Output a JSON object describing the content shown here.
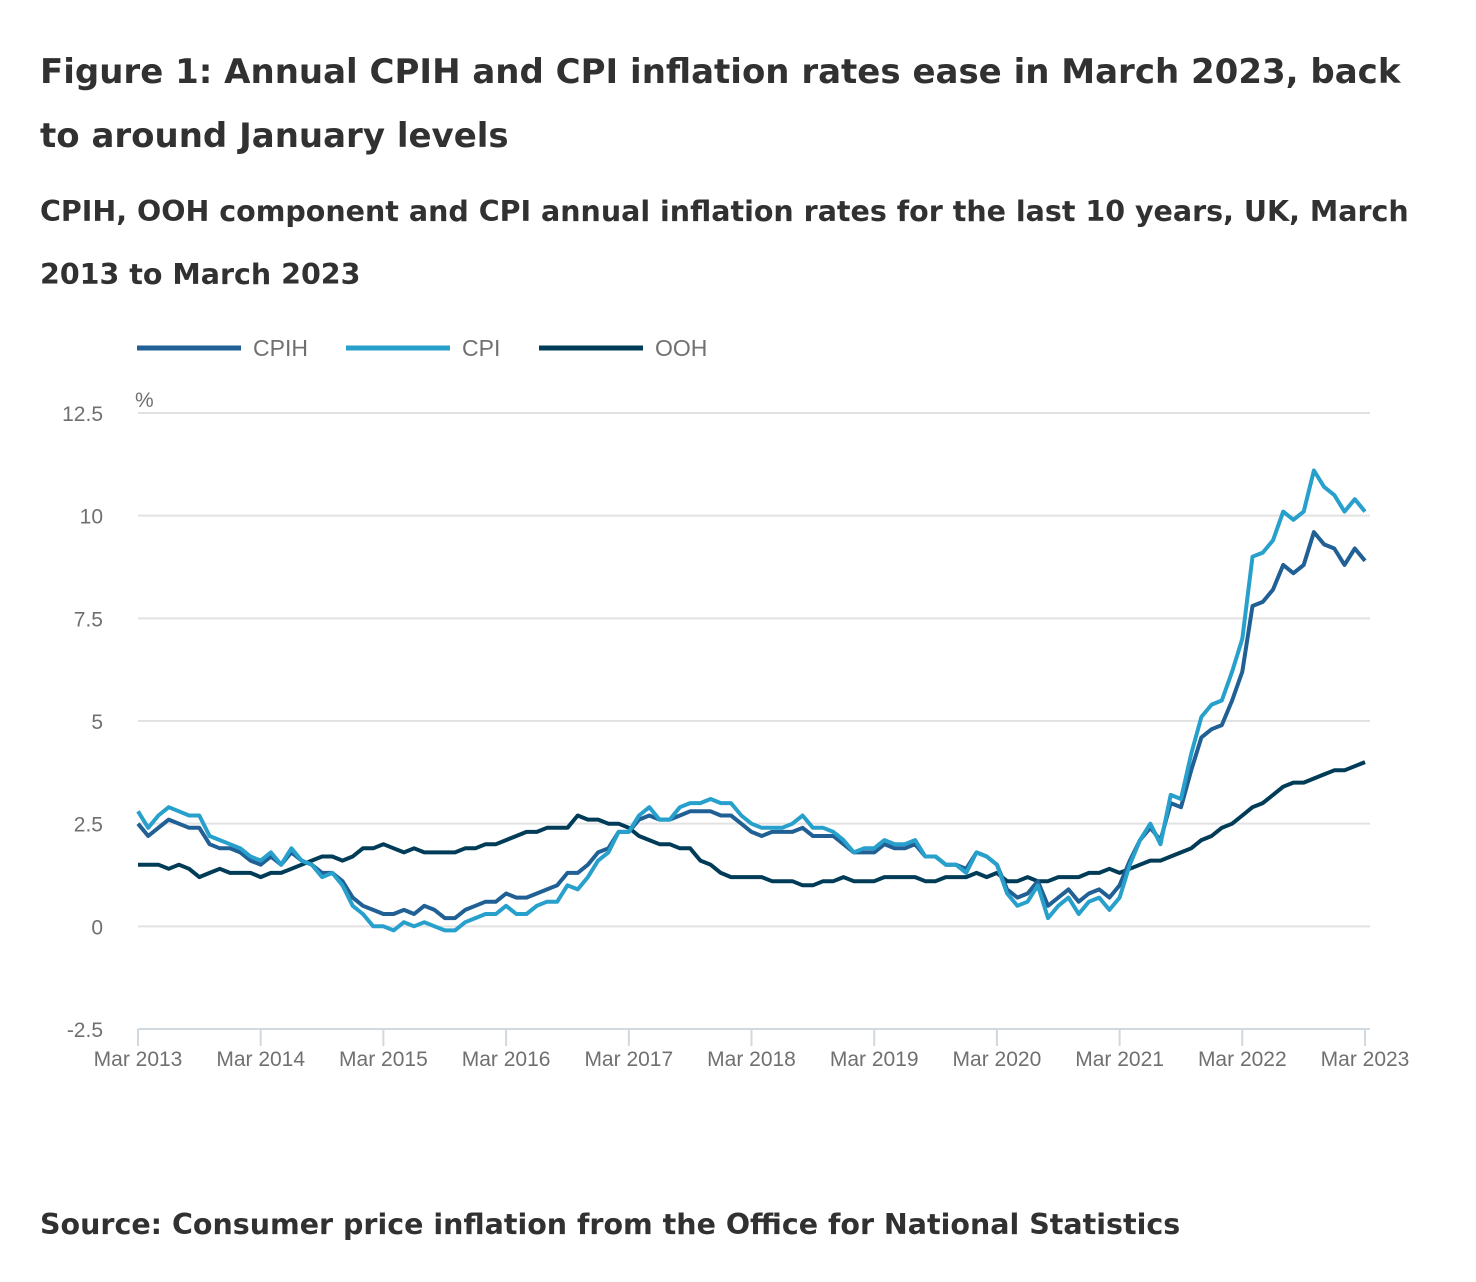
{
  "title": "Figure 1: Annual CPIH and CPI inflation rates ease in March 2023, back to around January levels",
  "subtitle": "CPIH, OOH component and CPI annual inflation rates for the last 10 years, UK, March 2013 to March 2023",
  "source": "Source: Consumer price inflation from the Office for National Statistics",
  "chart_data": {
    "type": "line",
    "title": "Figure 1: Annual CPIH and CPI inflation rates ease in March 2023, back to around January levels",
    "subtitle": "CPIH, OOH component and CPI annual inflation rates for the last 10 years, UK, March 2013 to March 2023",
    "ylabel": "%",
    "xlabel": "",
    "x_start": "Mar 2013",
    "x_end": "Mar 2023",
    "x_frequency": "monthly",
    "x_ticks": [
      "Mar 2013",
      "Mar 2014",
      "Mar 2015",
      "Mar 2016",
      "Mar 2017",
      "Mar 2018",
      "Mar 2019",
      "Mar 2020",
      "Mar 2021",
      "Mar 2022",
      "Mar 2023"
    ],
    "y_ticks": [
      "12.5",
      "10",
      "7.5",
      "5",
      "2.5",
      "0",
      "-2.5"
    ],
    "ylim": [
      -2.5,
      12.5
    ],
    "grid": "horizontal",
    "legend_position": "top-left",
    "series": [
      {
        "name": "CPIH",
        "color": "#206095",
        "values": [
          2.5,
          2.2,
          2.4,
          2.6,
          2.5,
          2.4,
          2.4,
          2.0,
          1.9,
          1.9,
          1.8,
          1.6,
          1.5,
          1.7,
          1.5,
          1.8,
          1.6,
          1.5,
          1.3,
          1.3,
          1.1,
          0.7,
          0.5,
          0.4,
          0.3,
          0.3,
          0.4,
          0.3,
          0.5,
          0.4,
          0.2,
          0.2,
          0.4,
          0.5,
          0.6,
          0.6,
          0.8,
          0.7,
          0.7,
          0.8,
          0.9,
          1.0,
          1.3,
          1.3,
          1.5,
          1.8,
          1.9,
          2.3,
          2.3,
          2.6,
          2.7,
          2.6,
          2.6,
          2.7,
          2.8,
          2.8,
          2.8,
          2.7,
          2.7,
          2.5,
          2.3,
          2.2,
          2.3,
          2.3,
          2.3,
          2.4,
          2.2,
          2.2,
          2.2,
          2.0,
          1.8,
          1.8,
          1.8,
          2.0,
          1.9,
          1.9,
          2.0,
          1.7,
          1.7,
          1.5,
          1.5,
          1.4,
          1.8,
          1.7,
          1.5,
          0.9,
          0.7,
          0.8,
          1.1,
          0.5,
          0.7,
          0.9,
          0.6,
          0.8,
          0.9,
          0.7,
          1.0,
          1.6,
          2.1,
          2.4,
          2.1,
          3.0,
          2.9,
          3.8,
          4.6,
          4.8,
          4.9,
          5.5,
          6.2,
          7.8,
          7.9,
          8.2,
          8.8,
          8.6,
          8.8,
          9.6,
          9.3,
          9.2,
          8.8,
          9.2,
          8.9
        ]
      },
      {
        "name": "CPI",
        "color": "#27a0cc",
        "values": [
          2.8,
          2.4,
          2.7,
          2.9,
          2.8,
          2.7,
          2.7,
          2.2,
          2.1,
          2.0,
          1.9,
          1.7,
          1.6,
          1.8,
          1.5,
          1.9,
          1.6,
          1.5,
          1.2,
          1.3,
          1.0,
          0.5,
          0.3,
          0.0,
          0.0,
          -0.1,
          0.1,
          0.0,
          0.1,
          0.0,
          -0.1,
          -0.1,
          0.1,
          0.2,
          0.3,
          0.3,
          0.5,
          0.3,
          0.3,
          0.5,
          0.6,
          0.6,
          1.0,
          0.9,
          1.2,
          1.6,
          1.8,
          2.3,
          2.3,
          2.7,
          2.9,
          2.6,
          2.6,
          2.9,
          3.0,
          3.0,
          3.1,
          3.0,
          3.0,
          2.7,
          2.5,
          2.4,
          2.4,
          2.4,
          2.5,
          2.7,
          2.4,
          2.4,
          2.3,
          2.1,
          1.8,
          1.9,
          1.9,
          2.1,
          2.0,
          2.0,
          2.1,
          1.7,
          1.7,
          1.5,
          1.5,
          1.3,
          1.8,
          1.7,
          1.5,
          0.8,
          0.5,
          0.6,
          1.0,
          0.2,
          0.5,
          0.7,
          0.3,
          0.6,
          0.7,
          0.4,
          0.7,
          1.5,
          2.1,
          2.5,
          2.0,
          3.2,
          3.1,
          4.2,
          5.1,
          5.4,
          5.5,
          6.2,
          7.0,
          9.0,
          9.1,
          9.4,
          10.1,
          9.9,
          10.1,
          11.1,
          10.7,
          10.5,
          10.1,
          10.4,
          10.1
        ]
      },
      {
        "name": "OOH",
        "color": "#003c57",
        "values": [
          1.5,
          1.5,
          1.5,
          1.4,
          1.5,
          1.4,
          1.2,
          1.3,
          1.4,
          1.3,
          1.3,
          1.3,
          1.2,
          1.3,
          1.3,
          1.4,
          1.5,
          1.6,
          1.7,
          1.7,
          1.6,
          1.7,
          1.9,
          1.9,
          2.0,
          1.9,
          1.8,
          1.9,
          1.8,
          1.8,
          1.8,
          1.8,
          1.9,
          1.9,
          2.0,
          2.0,
          2.1,
          2.2,
          2.3,
          2.3,
          2.4,
          2.4,
          2.4,
          2.7,
          2.6,
          2.6,
          2.5,
          2.5,
          2.4,
          2.2,
          2.1,
          2.0,
          2.0,
          1.9,
          1.9,
          1.6,
          1.5,
          1.3,
          1.2,
          1.2,
          1.2,
          1.2,
          1.1,
          1.1,
          1.1,
          1.0,
          1.0,
          1.1,
          1.1,
          1.2,
          1.1,
          1.1,
          1.1,
          1.2,
          1.2,
          1.2,
          1.2,
          1.1,
          1.1,
          1.2,
          1.2,
          1.2,
          1.3,
          1.2,
          1.3,
          1.1,
          1.1,
          1.2,
          1.1,
          1.1,
          1.2,
          1.2,
          1.2,
          1.3,
          1.3,
          1.4,
          1.3,
          1.4,
          1.5,
          1.6,
          1.6,
          1.7,
          1.8,
          1.9,
          2.1,
          2.2,
          2.4,
          2.5,
          2.7,
          2.9,
          3.0,
          3.2,
          3.4,
          3.5,
          3.5,
          3.6,
          3.7,
          3.8,
          3.8,
          3.9,
          4.0
        ]
      }
    ]
  }
}
